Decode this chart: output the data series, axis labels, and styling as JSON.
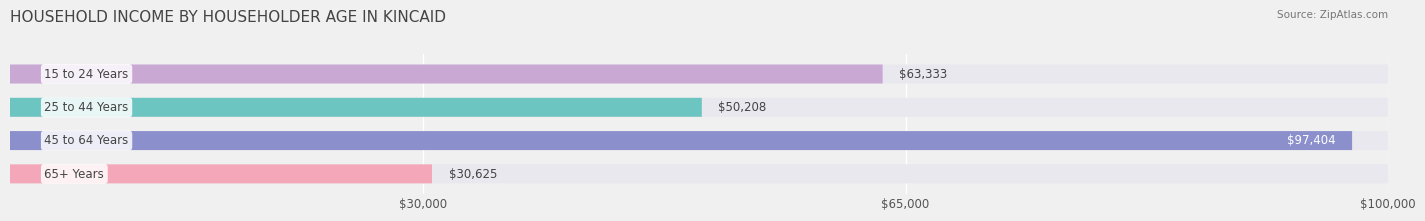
{
  "title": "HOUSEHOLD INCOME BY HOUSEHOLDER AGE IN KINCAID",
  "source": "Source: ZipAtlas.com",
  "categories": [
    "15 to 24 Years",
    "25 to 44 Years",
    "45 to 64 Years",
    "65+ Years"
  ],
  "values": [
    63333,
    50208,
    97404,
    30625
  ],
  "bar_colors": [
    "#c9a8d4",
    "#6dc5c1",
    "#8b8fcc",
    "#f4a7b9"
  ],
  "bar_labels": [
    "$63,333",
    "$50,208",
    "$97,404",
    "$30,625"
  ],
  "xlim": [
    0,
    100000
  ],
  "xticks": [
    30000,
    65000,
    100000
  ],
  "xtick_labels": [
    "$30,000",
    "$65,000",
    "$100,000"
  ],
  "background_color": "#f0f0f0",
  "bar_bg_color": "#e8e8ee",
  "title_fontsize": 11,
  "label_fontsize": 8.5,
  "value_fontsize": 8.5,
  "bar_height": 0.55
}
